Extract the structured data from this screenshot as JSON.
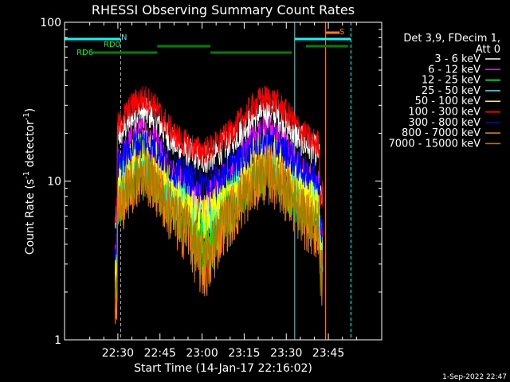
{
  "chart_data": {
    "type": "line",
    "title": "RHESSI Observing Summary Count Rates",
    "xlabel": "Start Time (14-Jan-17 22:16:02)",
    "ylabel_main": "Count Rate (s",
    "ylabel_sup1": "-1",
    "ylabel_mid": " detector",
    "ylabel_sup2": "-1",
    "ylabel_end": ")",
    "yscale": "log",
    "ylim": [
      1,
      100
    ],
    "xlim_min": [
      -4,
      109
    ],
    "x_tick_labels": [
      {
        "m": 15,
        "label": "22:30"
      },
      {
        "m": 30,
        "label": "22:45"
      },
      {
        "m": 45,
        "label": "23:00"
      },
      {
        "m": 60,
        "label": "23:15"
      },
      {
        "m": 75,
        "label": "23:30"
      },
      {
        "m": 90,
        "label": "23:45"
      }
    ],
    "y_tick_labels": [
      {
        "v": 1,
        "label": "1"
      },
      {
        "v": 10,
        "label": "10"
      },
      {
        "v": 100,
        "label": "100"
      }
    ],
    "legend": {
      "header1": "Det 3,9, FDecim 1,",
      "header2": "Att 0",
      "placement": "right"
    },
    "series": [
      {
        "name": "3 - 6 keV",
        "color": "#ffffff",
        "base": 14.5,
        "peak": 27,
        "dip": 0.07,
        "noise": 0.1
      },
      {
        "name": "6 - 12 keV",
        "color": "#ff00ff",
        "base": 8.5,
        "peak": 20,
        "dip": 0.15,
        "noise": 0.12
      },
      {
        "name": "12 - 25 keV",
        "color": "#00ff00",
        "base": 5.5,
        "peak": 13,
        "dip": 0.3,
        "noise": 0.2
      },
      {
        "name": "25 - 50 keV",
        "color": "#00ffff",
        "base": 6.5,
        "peak": 14.5,
        "dip": 0.15,
        "noise": 0.14
      },
      {
        "name": "50 - 100 keV",
        "color": "#ffff00",
        "base": 6.8,
        "peak": 15.5,
        "dip": 0.15,
        "noise": 0.14
      },
      {
        "name": "100 - 300 keV",
        "color": "#ff0000",
        "base": 16,
        "peak": 33,
        "dip": 0.05,
        "noise": 0.09
      },
      {
        "name": "300 - 800 keV",
        "color": "#0000ff",
        "base": 10,
        "peak": 17.5,
        "dip": 0.06,
        "noise": 0.11
      },
      {
        "name": "800 - 7000 keV",
        "color": "#ff8000",
        "base": 4.5,
        "peak": 11,
        "dip": 0.4,
        "noise": 0.2
      },
      {
        "name": "7000 - 15000 keV",
        "color": "#a08000",
        "base": 5,
        "peak": 11,
        "dip": 0.3,
        "noise": 0.15
      }
    ],
    "data_window_min": [
      14,
      88
    ],
    "bg_segments": [
      {
        "name": "N",
        "from": -4,
        "to": 16,
        "color": "#00ffff"
      },
      {
        "name": "RD0",
        "from": 29,
        "to": 48,
        "color": "#008000"
      },
      {
        "name": "RD0",
        "from": 82,
        "to": 97,
        "color": "#008000"
      },
      {
        "name": "RD6",
        "from": 6,
        "to": 29,
        "color": "#008000"
      },
      {
        "name": "RD6",
        "from": 48,
        "to": 77,
        "color": "#008000"
      },
      {
        "name": "S",
        "from": 89,
        "to": 94,
        "color": "#ff8000"
      },
      {
        "name": "N",
        "from": 78,
        "to": 98,
        "color": "#00ffff"
      }
    ],
    "segment_labels": [
      {
        "text": "N",
        "color": "#00ffff"
      },
      {
        "text": "RD0",
        "color": "#00ff00"
      },
      {
        "text": "RD6",
        "color": "#00ff00"
      },
      {
        "text": "S",
        "color": "#ff8000"
      }
    ],
    "vlines": [
      {
        "m": -4,
        "color": "#00ffff",
        "style": "solid"
      },
      {
        "m": 16,
        "color": "#00ffff",
        "style": "dashed"
      },
      {
        "m": 78,
        "color": "#00ffff",
        "style": "solid"
      },
      {
        "m": 89,
        "color": "#ff8000",
        "style": "solid"
      },
      {
        "m": 98,
        "color": "#00ffff",
        "style": "dashed"
      }
    ]
  },
  "footer_timestamp": "1-Sep-2022 22:47"
}
